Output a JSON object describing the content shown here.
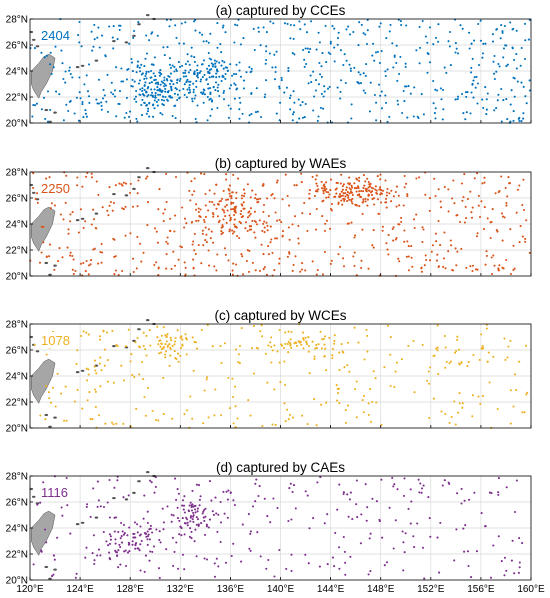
{
  "chart_data": [
    {
      "type": "scatter",
      "title": "(a) captured by CCEs",
      "count_label": "2404",
      "color": "#0072BD",
      "seed": 11,
      "density": 900,
      "hotspots": [
        [
          134.0,
          23.5,
          2.5,
          1.8
        ],
        [
          130.0,
          22.5,
          2.0,
          1.5
        ]
      ],
      "x_ticks": [
        "120°E",
        "124°E",
        "128°E",
        "132°E",
        "136°E",
        "140°E",
        "144°E",
        "148°E",
        "152°E",
        "156°E",
        "160°E"
      ],
      "y_ticks": [
        "20°N",
        "22°N",
        "24°N",
        "26°N",
        "28°N"
      ],
      "xlim": [
        120,
        160
      ],
      "ylim": [
        20,
        28
      ]
    },
    {
      "type": "scatter",
      "title": "(b) captured by WAEs",
      "count_label": "2250",
      "color": "#D95319",
      "seed": 23,
      "density": 850,
      "hotspots": [
        [
          136.0,
          25.0,
          3.0,
          1.8
        ],
        [
          146.0,
          26.5,
          3.0,
          1.0
        ]
      ],
      "x_ticks": [
        "120°E",
        "124°E",
        "128°E",
        "132°E",
        "136°E",
        "140°E",
        "144°E",
        "148°E",
        "152°E",
        "156°E",
        "160°E"
      ],
      "y_ticks": [
        "20°N",
        "22°N",
        "24°N",
        "26°N",
        "28°N"
      ],
      "xlim": [
        120,
        160
      ],
      "ylim": [
        20,
        28
      ]
    },
    {
      "type": "scatter",
      "title": "(c) captured by WCEs",
      "count_label": "1078",
      "color": "#EDB120",
      "seed": 37,
      "density": 430,
      "hotspots": [
        [
          131.0,
          26.5,
          2.5,
          1.0
        ],
        [
          142.0,
          26.5,
          3.0,
          1.0
        ]
      ],
      "x_ticks": [
        "120°E",
        "124°E",
        "128°E",
        "132°E",
        "136°E",
        "140°E",
        "144°E",
        "148°E",
        "152°E",
        "156°E",
        "160°E"
      ],
      "y_ticks": [
        "20°N",
        "22°N",
        "24°N",
        "26°N",
        "28°N"
      ],
      "xlim": [
        120,
        160
      ],
      "ylim": [
        20,
        28
      ]
    },
    {
      "type": "scatter",
      "title": "(d) captured by CAEs",
      "count_label": "1116",
      "color": "#7E2F8E",
      "seed": 53,
      "density": 450,
      "hotspots": [
        [
          133.0,
          25.0,
          2.0,
          1.5
        ],
        [
          128.0,
          23.0,
          2.5,
          1.5
        ]
      ],
      "x_ticks": [
        "120°E",
        "124°E",
        "128°E",
        "132°E",
        "136°E",
        "140°E",
        "144°E",
        "148°E",
        "152°E",
        "156°E",
        "160°E"
      ],
      "y_ticks": [
        "20°N",
        "22°N",
        "24°N",
        "26°N",
        "28°N"
      ],
      "xlim": [
        120,
        160
      ],
      "ylim": [
        20,
        28
      ]
    }
  ]
}
